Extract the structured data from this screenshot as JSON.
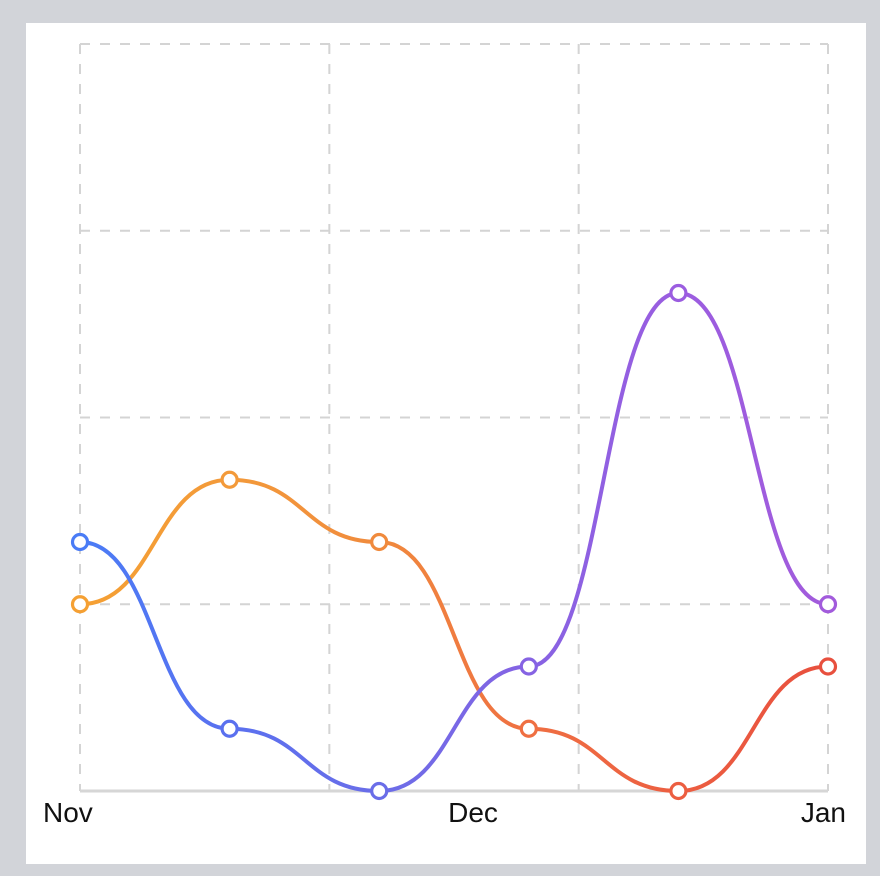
{
  "chart_data": {
    "type": "line",
    "x_labels": [
      "Nov",
      "Dec",
      "Jan"
    ],
    "ylim": [
      0,
      12
    ],
    "grid": true,
    "curve": "smooth",
    "points": [
      {
        "y": 3,
        "color": "#f5a033"
      },
      {
        "y": 5,
        "color": "#f39a3a"
      },
      {
        "y": 4,
        "color": "#f08a3d"
      },
      {
        "y": 1,
        "color": "#ef6f42"
      },
      {
        "y": 0,
        "color": "#ec5e41"
      },
      {
        "y": 2,
        "color": "#e8503e"
      }
    ],
    "points_2": [
      {
        "y": 4,
        "color": "#4a7cf6"
      },
      {
        "y": 1,
        "color": "#5a70ef"
      },
      {
        "y": 0,
        "color": "#6a6de8"
      },
      {
        "y": 2,
        "color": "#8663e3"
      },
      {
        "y": 8,
        "color": "#9b5de0"
      },
      {
        "y": 3,
        "color": "#a25bdc"
      }
    ]
  }
}
